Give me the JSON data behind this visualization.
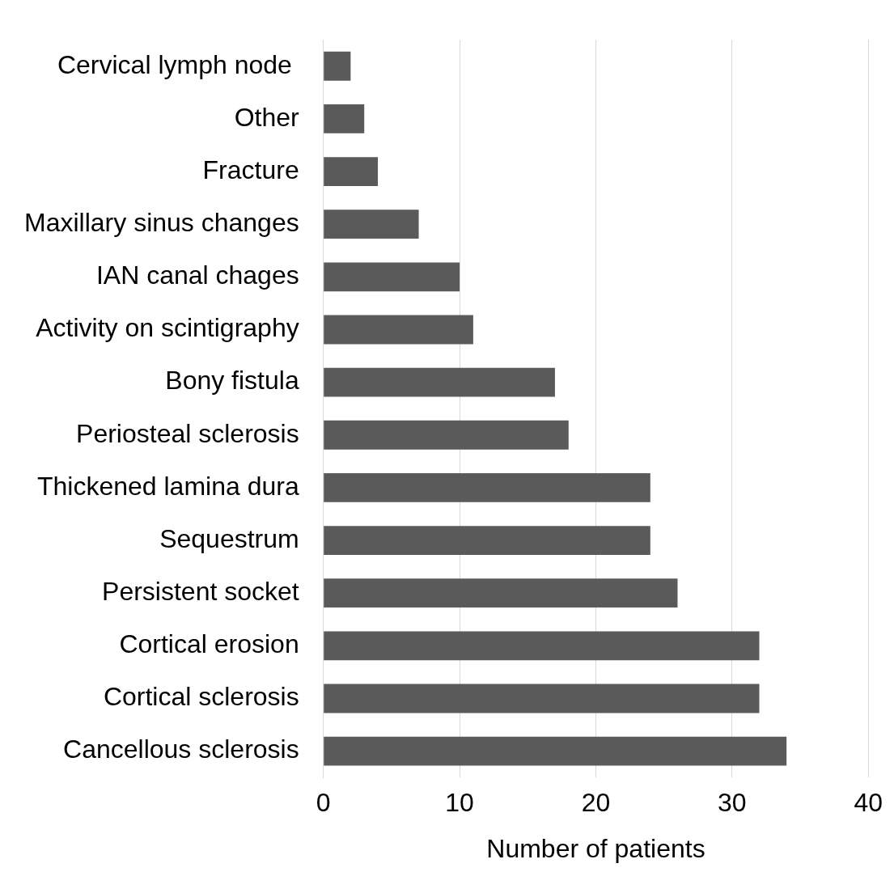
{
  "chart_data": {
    "type": "bar",
    "orientation": "horizontal",
    "xlabel": "Number of patients",
    "categories": [
      "Cervical lymph node ",
      "Other",
      "Fracture",
      "Maxillary sinus changes",
      "IAN canal chages",
      "Activity on scintigraphy",
      "Bony fistula",
      "Periosteal sclerosis",
      "Thickened lamina dura",
      "Sequestrum",
      "Persistent socket",
      "Cortical erosion",
      "Cortical sclerosis",
      "Cancellous sclerosis"
    ],
    "values": [
      2,
      3,
      4,
      7,
      10,
      11,
      17,
      18,
      24,
      24,
      26,
      32,
      32,
      34
    ],
    "color": "#5a5a5a",
    "xlim": [
      0,
      40
    ],
    "xticks": [
      0,
      10,
      20,
      30,
      40
    ],
    "grid": "x",
    "legend": false
  }
}
